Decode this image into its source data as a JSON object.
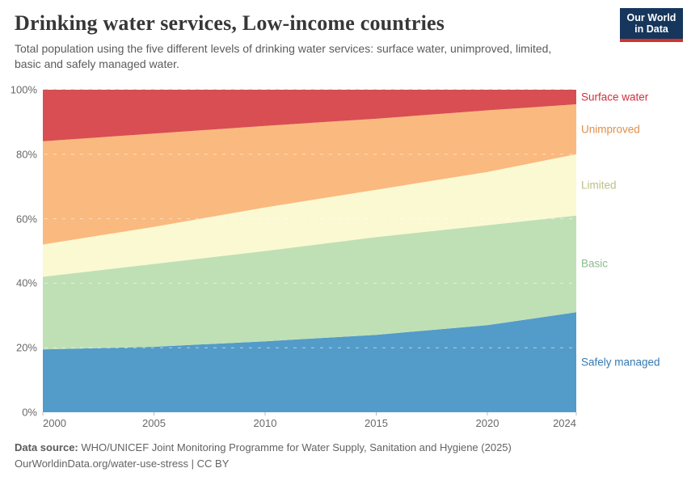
{
  "header": {
    "logo": {
      "line1": "Our World",
      "line2": "in Data"
    }
  },
  "chart_data": {
    "type": "area",
    "stacked": true,
    "title": "Drinking water services, Low-income countries",
    "subtitle": "Total population using the five different levels of drinking water services: surface water, unimproved, limited,\nbasic and safely managed water.",
    "x": [
      2000,
      2005,
      2010,
      2015,
      2020,
      2024
    ],
    "xlim": [
      2000,
      2024
    ],
    "ylim": [
      0,
      100
    ],
    "grid": "dashed-horizontal",
    "legend_position": "right-edge-of-plot",
    "series": [
      {
        "name": "Safely managed",
        "values": [
          19.5,
          20.3,
          22.0,
          24.0,
          27.0,
          31.0
        ],
        "fill": "#539bc8",
        "label_color": "#3779b1"
      },
      {
        "name": "Basic",
        "values": [
          22.5,
          25.7,
          28.0,
          30.3,
          31.0,
          30.0
        ],
        "fill": "#bfe0b5",
        "label_color": "#8abc8d"
      },
      {
        "name": "Limited",
        "values": [
          10.0,
          11.5,
          13.5,
          14.7,
          16.5,
          19.0
        ],
        "fill": "#fbf9d2",
        "label_color": "#bcc084"
      },
      {
        "name": "Unimproved",
        "values": [
          32.0,
          28.9,
          25.3,
          22.0,
          19.1,
          15.5
        ],
        "fill": "#fab97e",
        "label_color": "#df8f49"
      },
      {
        "name": "Surface water",
        "values": [
          16.0,
          13.6,
          11.2,
          9.0,
          6.4,
          4.5
        ],
        "fill": "#d84e53",
        "label_color": "#d02f3e"
      }
    ],
    "y_ticks": [
      {
        "label": "0%",
        "value": 0
      },
      {
        "label": "20%",
        "value": 20
      },
      {
        "label": "40%",
        "value": 40
      },
      {
        "label": "60%",
        "value": 60
      },
      {
        "label": "80%",
        "value": 80
      },
      {
        "label": "100%",
        "value": 100
      }
    ],
    "x_ticks": [
      {
        "label": "2000",
        "value": 2000
      },
      {
        "label": "2005",
        "value": 2005
      },
      {
        "label": "2010",
        "value": 2010
      },
      {
        "label": "2015",
        "value": 2015
      },
      {
        "label": "2020",
        "value": 2020
      },
      {
        "label": "2024",
        "value": 2024
      }
    ]
  },
  "footer": {
    "data_source_label": "Data source:",
    "data_source": " WHO/UNICEF Joint Monitoring Programme for Water Supply, Sanitation and Hygiene (2025)",
    "attribution": "OurWorldinData.org/water-use-stress | CC BY"
  }
}
